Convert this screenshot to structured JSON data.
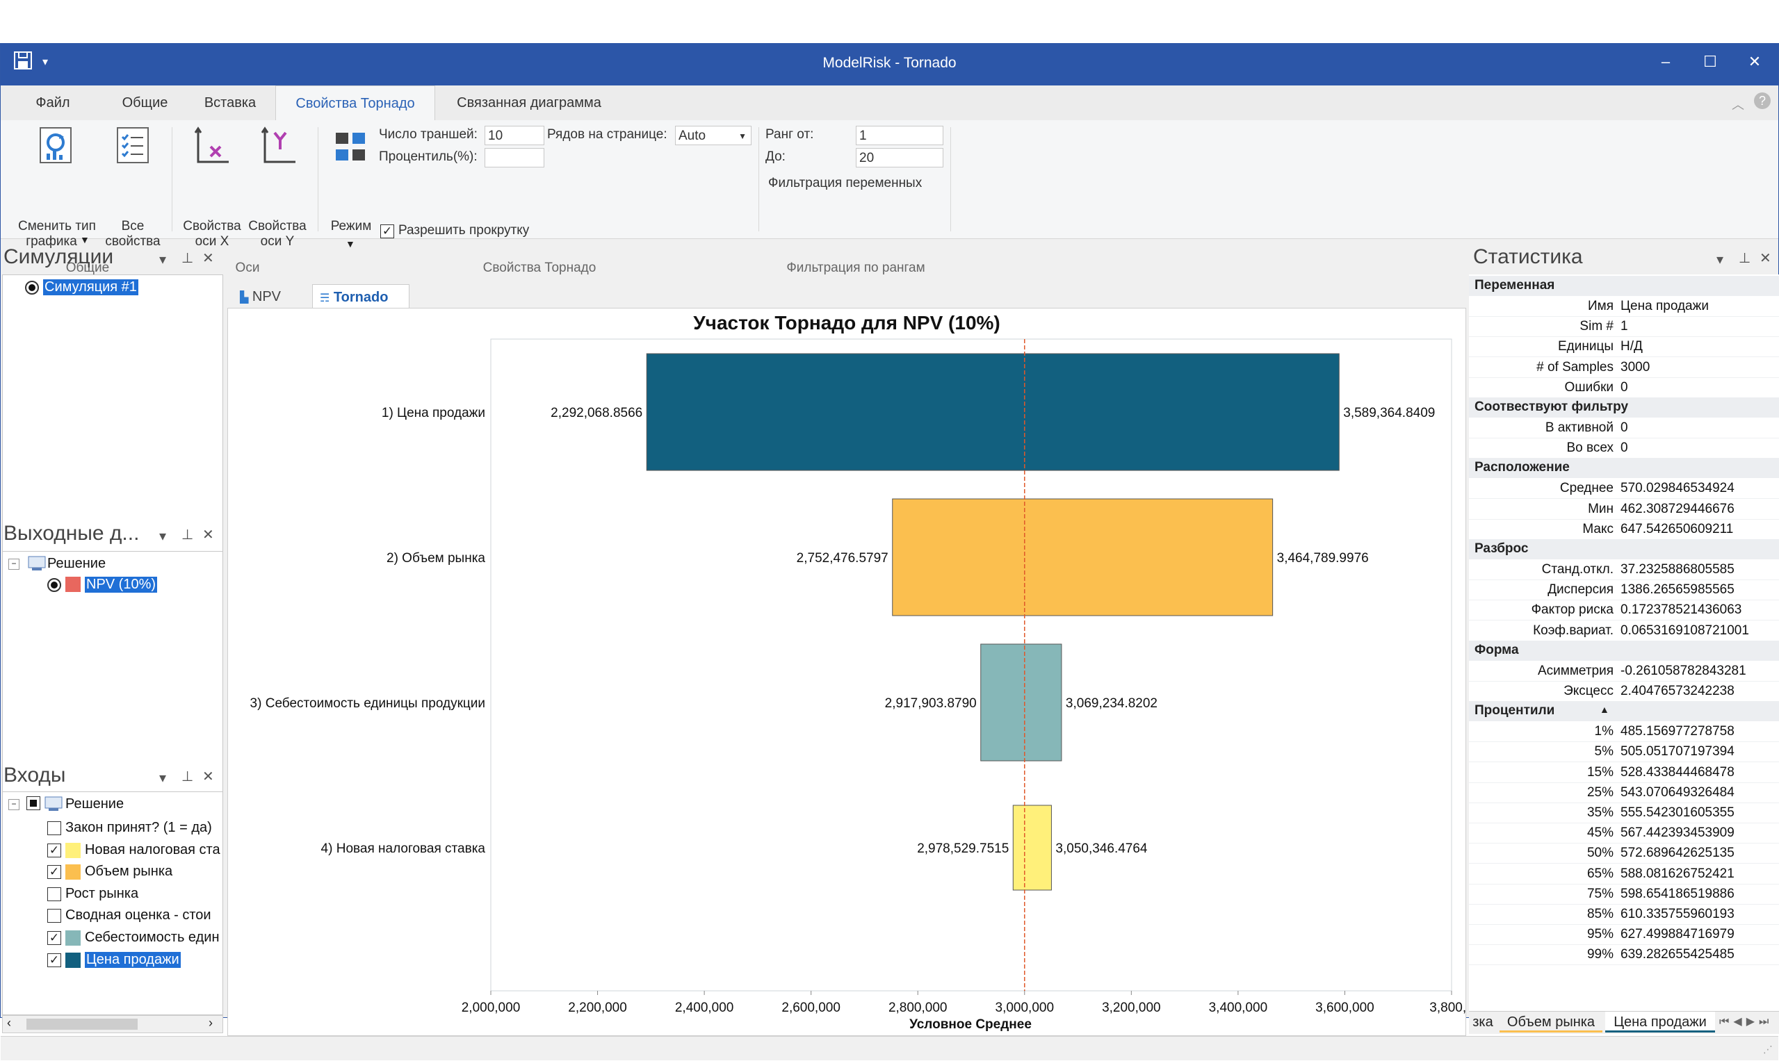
{
  "window": {
    "title": "ModelRisk - Tornado",
    "minimize": "–",
    "maximize": "☐",
    "close": "✕",
    "quick_access": "▾"
  },
  "ribbon_tabs": [
    "Файл",
    "Общие",
    "Вставка",
    "Свойства Торнадо",
    "Связанная диаграмма"
  ],
  "ribbon": {
    "change_chart_type": "Сменить тип графика",
    "change_chart_type_l1": "Сменить тип",
    "change_chart_type_l2": "графика",
    "all_props_l1": "Все",
    "all_props_l2": "свойства",
    "group_general": "Общие",
    "x_axis_l1": "Свойства",
    "x_axis_l2": "оси X",
    "y_axis_l1": "Свойства",
    "y_axis_l2": "оси Y",
    "group_axes": "Оси",
    "mode": "Режим",
    "tranches_label": "Число траншей:",
    "tranches_value": "10",
    "rows_per_page_label": "Рядов на странице:",
    "rows_per_page_value": "Auto",
    "percentile_label": "Процентиль(%):",
    "percentile_value": "",
    "allow_scroll": "Разрешить прокрутку",
    "group_tornado": "Свойства Торнадо",
    "rank_from_label": "Ранг от:",
    "rank_from_value": "1",
    "to_label": "До:",
    "to_value": "20",
    "filter_vars": "Фильтрация переменных",
    "group_rank_filter": "Фильтрация по рангам"
  },
  "simulations_pane": {
    "title": "Симуляции",
    "item": "Симуляция #1"
  },
  "outputs_pane": {
    "title": "Выходные д...",
    "root": "Решение",
    "item": "NPV (10%)",
    "item_color": "#e8675e"
  },
  "inputs_pane": {
    "title": "Входы",
    "root": "Решение",
    "items": [
      {
        "label": "Закон принят? (1 = да)",
        "checked": false,
        "color": ""
      },
      {
        "label": "Новая налоговая ста",
        "checked": true,
        "color": "#fff07a"
      },
      {
        "label": "Объем рынка",
        "checked": true,
        "color": "#fbbf4f"
      },
      {
        "label": "Рост рынка",
        "checked": false,
        "color": ""
      },
      {
        "label": "Сводная оценка - стои",
        "checked": false,
        "color": ""
      },
      {
        "label": "Себестоимость един",
        "checked": true,
        "color": "#86b7b8"
      },
      {
        "label": "Цена продажи",
        "checked": true,
        "color": "#12607f"
      }
    ]
  },
  "doc_tabs": [
    "NPV",
    "Tornado"
  ],
  "chart_data": {
    "type": "bar",
    "orientation": "horizontal-tornado",
    "title": "Участок Торнадо для NPV (10%)",
    "xlabel": "Условное Среднее",
    "xlim": [
      2000000,
      3800000
    ],
    "x_ticks": [
      "2,000,000",
      "2,200,000",
      "2,400,000",
      "2,600,000",
      "2,800,000",
      "3,000,000",
      "3,200,000",
      "3,400,000",
      "3,600,000",
      "3,800,0"
    ],
    "baseline": 3000000,
    "categories": [
      "1) Цена продажи",
      "2) Объем рынка",
      "3) Себестоимость единицы продукции",
      "4) Новая налоговая ставка"
    ],
    "low": [
      2292068.8566,
      2752476.5797,
      2917903.879,
      2978529.7515
    ],
    "high": [
      3589364.8409,
      3464789.9976,
      3069234.8202,
      3050346.4764
    ],
    "low_labels": [
      "2,292,068.8566",
      "2,752,476.5797",
      "2,917,903.8790",
      "2,978,529.7515"
    ],
    "high_labels": [
      "3,589,364.8409",
      "3,464,789.9976",
      "3,069,234.8202",
      "3,050,346.4764"
    ],
    "colors": [
      "#12607f",
      "#fbbf4f",
      "#86b7b8",
      "#fff07a"
    ],
    "grid": false
  },
  "stats_pane": {
    "title": "Статистика",
    "sections": [
      {
        "header": "Переменная",
        "rows": [
          [
            "Имя",
            "Цена продажи"
          ],
          [
            "Sim #",
            "1"
          ],
          [
            "Единицы",
            "Н/Д"
          ],
          [
            "# of Samples",
            "3000"
          ],
          [
            "Ошибки",
            "0"
          ]
        ]
      },
      {
        "header": "Соотвествуют фильтру",
        "rows": [
          [
            "В активной",
            "0"
          ],
          [
            "Во всех",
            "0"
          ]
        ]
      },
      {
        "header": "Расположение",
        "rows": [
          [
            "Среднее",
            "570.029846534924"
          ],
          [
            "Мин",
            "462.308729446676"
          ],
          [
            "Макс",
            "647.542650609211"
          ]
        ]
      },
      {
        "header": "Разброс",
        "rows": [
          [
            "Станд.откл.",
            "37.2325886805585"
          ],
          [
            "Дисперсия",
            "1386.26565985565"
          ],
          [
            "Фактор риска",
            "0.172378521436063"
          ],
          [
            "Коэф.вариат.",
            "0.0653169108721001"
          ]
        ]
      },
      {
        "header": "Форма",
        "rows": [
          [
            "Асимметрия",
            "-0.261058782843281"
          ],
          [
            "Эксцесс",
            "2.40476573242238"
          ]
        ]
      },
      {
        "header": "Процентили",
        "rows": [
          [
            "1%",
            "485.156977278758"
          ],
          [
            "5%",
            "505.051707197394"
          ],
          [
            "15%",
            "528.433844468478"
          ],
          [
            "25%",
            "543.070649326484"
          ],
          [
            "35%",
            "555.542301605355"
          ],
          [
            "45%",
            "567.442393453909"
          ],
          [
            "50%",
            "572.689642625135"
          ],
          [
            "65%",
            "588.081626752421"
          ],
          [
            "75%",
            "598.654186519886"
          ],
          [
            "85%",
            "610.335755960193"
          ],
          [
            "95%",
            "627.499884716979"
          ],
          [
            "99%",
            "639.282655425485"
          ]
        ]
      }
    ],
    "bottom_tabs": [
      "зка",
      "Объем рынка",
      "Цена продажи"
    ]
  }
}
